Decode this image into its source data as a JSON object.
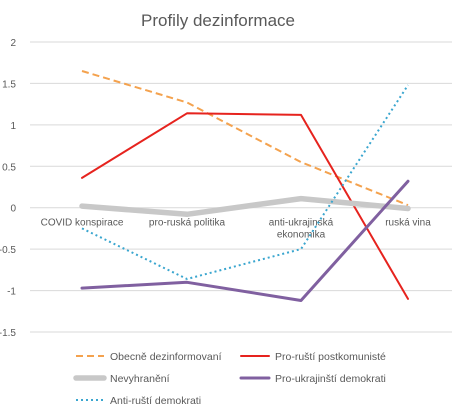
{
  "chart_data": {
    "type": "line",
    "title": "Profily dezinformace",
    "categories": [
      "COVID konspirace",
      "pro-ruská politika",
      "anti-ukrajinská ekonomika",
      "ruská vina"
    ],
    "category_label_lines": [
      [
        "COVID konspirace"
      ],
      [
        "pro-ruská politika"
      ],
      [
        "anti-ukrajinská",
        "ekonomika"
      ],
      [
        "ruská vina"
      ]
    ],
    "ylim": [
      -1.5,
      2
    ],
    "yticks": [
      2,
      1.5,
      1,
      0.5,
      0,
      -0.5,
      -1,
      -1.5
    ],
    "ytick_labels": [
      "2",
      "1.5",
      "1",
      "0.5",
      "0",
      "-0.5",
      "-1",
      "-1.5"
    ],
    "grid": true,
    "legend_position": "bottom",
    "series": [
      {
        "name": "Obecně dezinformovaní",
        "values": [
          1.65,
          1.27,
          0.55,
          0.03
        ],
        "color": "#f4a24e",
        "style": "dashed",
        "weight": "normal"
      },
      {
        "name": "Pro-ruští postkomunisté",
        "values": [
          0.36,
          1.14,
          1.12,
          -1.1
        ],
        "color": "#e6231e",
        "style": "solid",
        "weight": "normal"
      },
      {
        "name": "Nevyhranění",
        "values": [
          0.02,
          -0.08,
          0.11,
          -0.01
        ],
        "color": "#c8c8c8",
        "style": "solid",
        "weight": "thick"
      },
      {
        "name": "Pro-ukrajinští demokrati",
        "values": [
          -0.97,
          -0.9,
          -1.12,
          0.32
        ],
        "color": "#8060a0",
        "style": "solid",
        "weight": "medium"
      },
      {
        "name": "Anti-ruští demokrati",
        "values": [
          -0.25,
          -0.86,
          -0.5,
          1.48
        ],
        "color": "#3aa6cf",
        "style": "dotted",
        "weight": "normal"
      }
    ]
  }
}
